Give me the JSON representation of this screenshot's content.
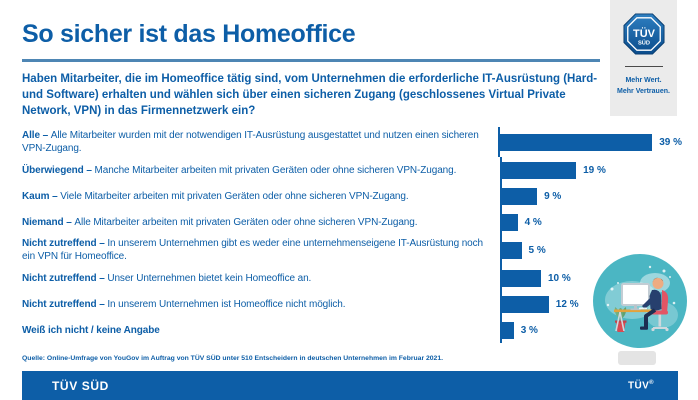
{
  "header": {
    "title": "So sicher ist das Homeoffice",
    "question": "Haben Mitarbeiter, die im Homeoffice tätig sind, vom Unternehmen die erforderliche IT-Ausrüstung (Hard- und Software) erhalten und wählen sich über einen sicheren Zugang (geschlossenes Virtual Private Network, VPN) in das Firmennetzwerk ein?"
  },
  "brand_panel": {
    "logo_line1": "TÜV",
    "logo_line2": "SÜD",
    "tagline_line1": "Mehr Wert.",
    "tagline_line2": "Mehr Vertrauen."
  },
  "chart_data": {
    "type": "bar",
    "orientation": "horizontal",
    "unit": "%",
    "xlim": [
      0,
      40
    ],
    "bar_color": "#0D5EA7",
    "categories": [
      "Alle",
      "Überwiegend",
      "Kaum",
      "Niemand",
      "Nicht zutreffend",
      "Nicht zutreffend",
      "Nicht zutreffend",
      "Weiß ich nicht / keine Angabe"
    ],
    "values": [
      39,
      19,
      9,
      4,
      5,
      10,
      12,
      3
    ],
    "value_labels": [
      "39 %",
      "19 %",
      "9 %",
      "4 %",
      "5 %",
      "10 %",
      "12 %",
      "3 %"
    ],
    "rows": [
      {
        "lead": "Alle",
        "sep": " – ",
        "desc": "Alle Mitarbeiter wurden mit der notwendigen IT-Ausrüstung ausgestattet und nutzen einen sicheren VPN-Zugang."
      },
      {
        "lead": "Überwiegend",
        "sep": " – ",
        "desc": "Manche Mitarbeiter arbeiten mit privaten Geräten oder ohne sicheren VPN-Zugang."
      },
      {
        "lead": "Kaum",
        "sep": " – ",
        "desc": "Viele Mitarbeiter arbeiten mit privaten Geräten oder ohne sicheren VPN-Zugang."
      },
      {
        "lead": "Niemand",
        "sep": " – ",
        "desc": "Alle Mitarbeiter arbeiten mit privaten Geräten oder ohne sicheren VPN-Zugang."
      },
      {
        "lead": "Nicht zutreffend",
        "sep": " – ",
        "desc": "In unserem Unternehmen gibt es weder eine unternehmenseigene IT-Ausrüstung noch ein VPN für Homeoffice."
      },
      {
        "lead": "Nicht zutreffend",
        "sep": " – ",
        "desc": "Unser Unternehmen bietet kein Homeoffice an."
      },
      {
        "lead": "Nicht zutreffend",
        "sep": " – ",
        "desc": "In unserem Unternehmen ist Homeoffice nicht möglich."
      },
      {
        "lead": "Weiß ich nicht / keine Angabe",
        "sep": "",
        "desc": ""
      }
    ]
  },
  "source": "Quelle: Online-Umfrage von YouGov im Auftrag von TÜV SÜD unter 510 Entscheidern in deutschen Unternehmen im Februar 2021.",
  "footer": {
    "left": "TÜV SÜD",
    "right": "TÜV",
    "right_sup": "®"
  },
  "colors": {
    "brand_blue": "#0D5EA7",
    "rule_blue": "#4E86B4",
    "panel_gray": "#EBEBEB",
    "illustration_teal": "#4BB6C3",
    "chair_red": "#E25565",
    "footer_text": "#FFFFFF"
  }
}
